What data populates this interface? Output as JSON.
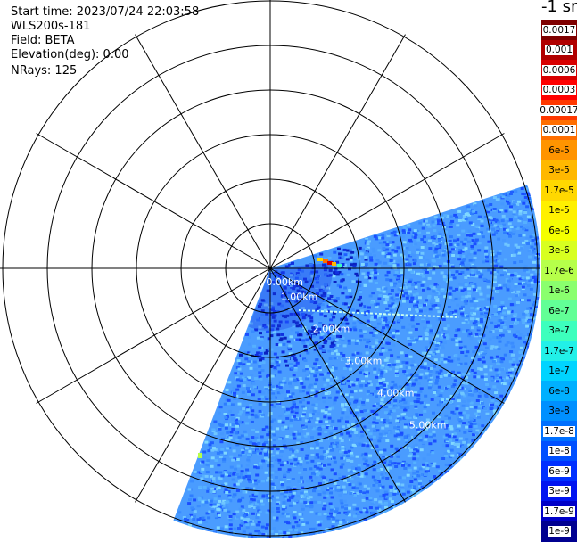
{
  "info": {
    "start_time": "Start time: 2023/07/24 22:03:58",
    "instrument": "WLS200s-181",
    "field": "Field: BETA",
    "elevation": "Elevation(deg): 0.00",
    "nrays": "NRays: 125"
  },
  "range_rings": [
    "0.00km",
    "1.00km",
    "2.00km",
    "3.00km",
    "4.00km",
    "5.00km"
  ],
  "colorbar": {
    "title": "-1 sr",
    "labels": [
      "0.0017",
      "0.001",
      "0.0006",
      "0.0003",
      "0.00017",
      "0.0001",
      "6e-5",
      "3e-5",
      "1.7e-5",
      "1e-5",
      "6e-6",
      "3e-6",
      "1.7e-6",
      "1e-6",
      "6e-7",
      "3e-7",
      "1.7e-7",
      "1e-7",
      "6e-8",
      "3e-8",
      "1.7e-8",
      "1e-8",
      "6e-9",
      "3e-9",
      "1.7e-9",
      "1e-9"
    ],
    "colors": [
      "#7f0000",
      "#b00000",
      "#d80000",
      "#ff0000",
      "#ff3800",
      "#ff6e00",
      "#ff9400",
      "#ffb800",
      "#ffd800",
      "#fff000",
      "#f4ff00",
      "#d8ff20",
      "#b6ff4a",
      "#8aff6e",
      "#62ff96",
      "#3dffbd",
      "#22f0e8",
      "#00d4ff",
      "#00b0ff",
      "#0090ff",
      "#0070ff",
      "#0050ff",
      "#0030ff",
      "#0014f0",
      "#0000c8",
      "#000090"
    ]
  },
  "colors": {
    "background": "#4a9cff",
    "grid": "#000000"
  }
}
